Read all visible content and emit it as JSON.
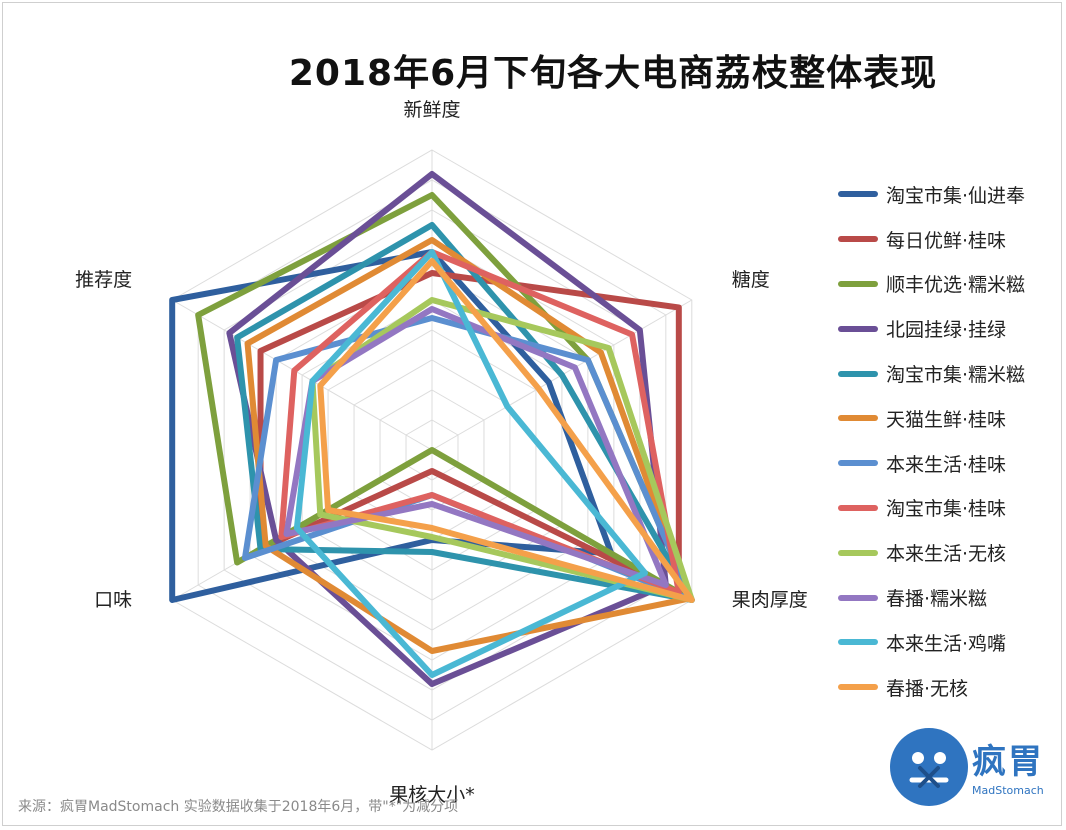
{
  "chart_data": {
    "type": "radar",
    "title": "2018年6月下旬各大电商荔枝整体表现",
    "axes": [
      "新鲜度",
      "糖度",
      "果肉厚度",
      "果核大小*",
      "口味",
      "推荐度"
    ],
    "max": 10,
    "gridlines": 10,
    "series": [
      {
        "name": "淘宝市集·仙进奉",
        "color": "#2f5f9e",
        "values": [
          6.6,
          4.5,
          6.9,
          3.0,
          10.0,
          10.0
        ]
      },
      {
        "name": "每日优鲜·桂味",
        "color": "#b94a48",
        "values": [
          5.9,
          9.5,
          9.5,
          0.7,
          6.6,
          6.6
        ]
      },
      {
        "name": "顺丰优选·糯米糍",
        "color": "#7ea03d",
        "values": [
          8.5,
          6.0,
          10.0,
          0.0,
          7.5,
          9.0
        ]
      },
      {
        "name": "北园挂绿·挂绿",
        "color": "#6a4f96",
        "values": [
          9.2,
          8.0,
          9.0,
          7.8,
          6.0,
          7.8
        ]
      },
      {
        "name": "淘宝市集·糯米糍",
        "color": "#2e93ac",
        "values": [
          7.5,
          5.0,
          10.0,
          3.4,
          6.6,
          7.5
        ]
      },
      {
        "name": "天猫生鲜·桂味",
        "color": "#e08a34",
        "values": [
          7.0,
          6.5,
          9.9,
          6.7,
          6.4,
          7.1
        ]
      },
      {
        "name": "本来生活·桂味",
        "color": "#5b8fd0",
        "values": [
          4.4,
          6.0,
          10.0,
          1.5,
          7.2,
          6.0
        ]
      },
      {
        "name": "淘宝市集·桂味",
        "color": "#de6260",
        "values": [
          6.6,
          7.7,
          9.5,
          1.5,
          5.8,
          5.3
        ]
      },
      {
        "name": "本来生活·无核",
        "color": "#a6c85c",
        "values": [
          5.0,
          6.8,
          10.0,
          2.9,
          4.3,
          4.6
        ]
      },
      {
        "name": "春播·糯米糍",
        "color": "#9377c2",
        "values": [
          4.7,
          5.5,
          9.0,
          1.8,
          5.6,
          4.6
        ]
      },
      {
        "name": "本来生活·鸡嘴",
        "color": "#4ab8d4",
        "values": [
          6.6,
          2.9,
          8.2,
          7.5,
          5.2,
          4.6
        ]
      },
      {
        "name": "春播·无核",
        "color": "#f4a04a",
        "values": [
          6.3,
          4.1,
          10.0,
          2.6,
          4.0,
          4.3
        ]
      }
    ]
  },
  "footer": {
    "source": "来源：疯胃MadStomach    实验数据收集于2018年6月，带\"*\"为减分项"
  },
  "logo": {
    "text": "疯胃",
    "subtext": "MadStomach"
  }
}
